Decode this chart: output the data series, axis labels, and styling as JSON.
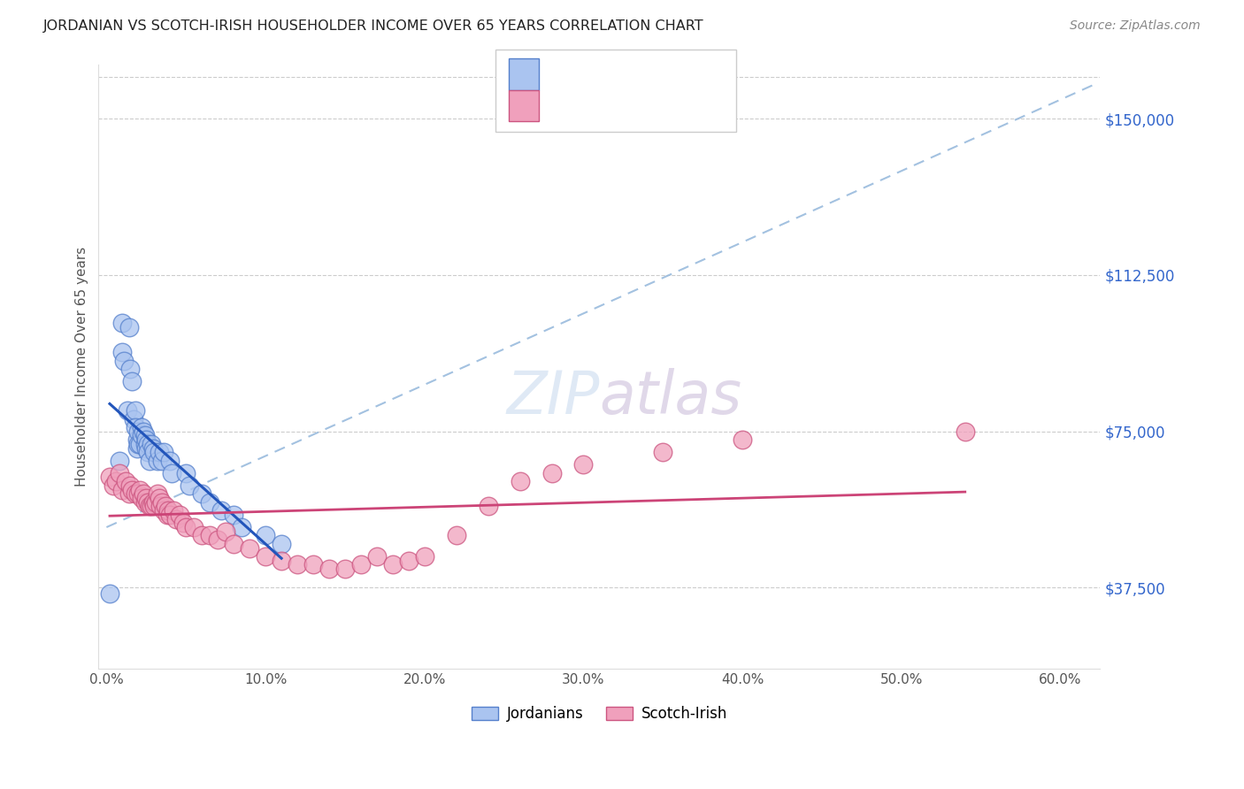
{
  "title": "JORDANIAN VS SCOTCH-IRISH HOUSEHOLDER INCOME OVER 65 YEARS CORRELATION CHART",
  "source": "Source: ZipAtlas.com",
  "ylabel": "Householder Income Over 65 years",
  "xlabel_ticks": [
    "0.0%",
    "10.0%",
    "20.0%",
    "30.0%",
    "40.0%",
    "50.0%",
    "60.0%"
  ],
  "xlabel_vals": [
    0.0,
    0.1,
    0.2,
    0.3,
    0.4,
    0.5,
    0.6
  ],
  "ytick_labels": [
    "$37,500",
    "$75,000",
    "$112,500",
    "$150,000"
  ],
  "ytick_vals": [
    37500,
    75000,
    112500,
    150000
  ],
  "ymin": 18000,
  "ymax": 163000,
  "xmin": -0.005,
  "xmax": 0.625,
  "jordan_color": "#aac4f0",
  "jordan_edge": "#5580cc",
  "scotch_color": "#f0a0bc",
  "scotch_edge": "#cc5580",
  "trend_jordan_color": "#2255bb",
  "trend_scotch_color": "#cc4477",
  "trend_dashed_color": "#99bbdd",
  "background_color": "#ffffff",
  "jordanians_x": [
    0.002,
    0.008,
    0.01,
    0.01,
    0.011,
    0.013,
    0.014,
    0.015,
    0.016,
    0.017,
    0.018,
    0.018,
    0.019,
    0.019,
    0.02,
    0.02,
    0.021,
    0.022,
    0.022,
    0.023,
    0.024,
    0.024,
    0.025,
    0.025,
    0.026,
    0.026,
    0.027,
    0.028,
    0.029,
    0.03,
    0.032,
    0.033,
    0.035,
    0.036,
    0.04,
    0.041,
    0.05,
    0.052,
    0.06,
    0.065,
    0.072,
    0.08,
    0.085,
    0.1,
    0.11
  ],
  "jordanians_y": [
    36000,
    68000,
    101000,
    94000,
    92000,
    80000,
    100000,
    90000,
    87000,
    78000,
    80000,
    76000,
    73000,
    71000,
    75000,
    72000,
    72000,
    76000,
    74000,
    75000,
    74000,
    72000,
    73000,
    71000,
    72000,
    70000,
    68000,
    72000,
    71000,
    70000,
    68000,
    70000,
    68000,
    70000,
    68000,
    65000,
    65000,
    62000,
    60000,
    58000,
    56000,
    55000,
    52000,
    50000,
    48000
  ],
  "scotch_x": [
    0.002,
    0.004,
    0.006,
    0.008,
    0.01,
    0.012,
    0.014,
    0.015,
    0.016,
    0.018,
    0.02,
    0.021,
    0.022,
    0.023,
    0.024,
    0.025,
    0.026,
    0.027,
    0.028,
    0.029,
    0.03,
    0.031,
    0.032,
    0.033,
    0.034,
    0.035,
    0.036,
    0.037,
    0.038,
    0.039,
    0.04,
    0.042,
    0.044,
    0.046,
    0.048,
    0.05,
    0.055,
    0.06,
    0.065,
    0.07,
    0.075,
    0.08,
    0.09,
    0.1,
    0.11,
    0.12,
    0.13,
    0.14,
    0.15,
    0.16,
    0.17,
    0.18,
    0.19,
    0.2,
    0.22,
    0.24,
    0.26,
    0.28,
    0.3,
    0.35,
    0.4,
    0.54
  ],
  "scotch_y": [
    64000,
    62000,
    63000,
    65000,
    61000,
    63000,
    60000,
    62000,
    61000,
    60000,
    60000,
    61000,
    59000,
    60000,
    58000,
    59000,
    58000,
    57000,
    57000,
    58000,
    57000,
    58000,
    60000,
    59000,
    57000,
    58000,
    56000,
    57000,
    55000,
    56000,
    55000,
    56000,
    54000,
    55000,
    53000,
    52000,
    52000,
    50000,
    50000,
    49000,
    51000,
    48000,
    47000,
    45000,
    44000,
    43000,
    43000,
    42000,
    42000,
    43000,
    45000,
    43000,
    44000,
    45000,
    50000,
    57000,
    63000,
    65000,
    67000,
    70000,
    73000,
    75000
  ]
}
